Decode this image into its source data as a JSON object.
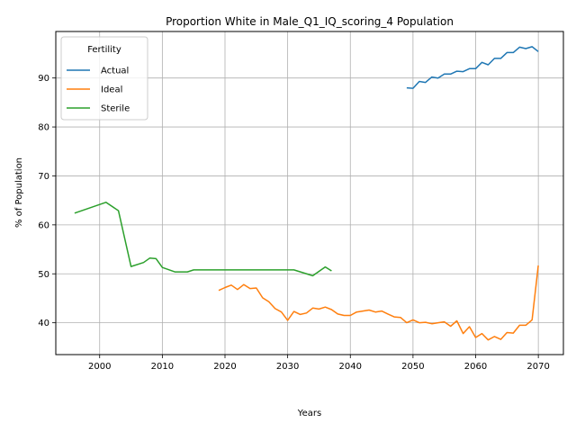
{
  "chart_data": {
    "type": "line",
    "title": "Proportion White in Male_Q1_IQ_scoring_4 Population",
    "xlabel": "Years",
    "ylabel": "% of Population",
    "xlim": [
      1993,
      2074
    ],
    "ylim": [
      33.5,
      99.5
    ],
    "xticks": [
      2000,
      2010,
      2020,
      2030,
      2040,
      2050,
      2060,
      2070
    ],
    "yticks": [
      40,
      50,
      60,
      70,
      80,
      90
    ],
    "grid": true,
    "legend": {
      "title": "Fertility",
      "placement": "top-left"
    },
    "series": [
      {
        "name": "Actual",
        "color": "#1f77b4",
        "x": [
          2049,
          2050,
          2051,
          2052,
          2053,
          2054,
          2055,
          2056,
          2057,
          2058,
          2059,
          2060,
          2061,
          2062,
          2063,
          2064,
          2065,
          2066,
          2067,
          2068,
          2069,
          2070
        ],
        "y": [
          88.0,
          87.9,
          89.3,
          89.1,
          90.2,
          90.0,
          90.8,
          90.8,
          91.4,
          91.3,
          91.9,
          91.9,
          93.2,
          92.7,
          94.0,
          94.0,
          95.2,
          95.2,
          96.3,
          96.0,
          96.4,
          95.4
        ]
      },
      {
        "name": "Ideal",
        "color": "#ff7f0e",
        "x": [
          2019,
          2020,
          2021,
          2022,
          2023,
          2024,
          2025,
          2026,
          2027,
          2028,
          2029,
          2030,
          2031,
          2032,
          2033,
          2034,
          2035,
          2036,
          2037,
          2038,
          2039,
          2040,
          2041,
          2042,
          2043,
          2044,
          2045,
          2046,
          2047,
          2048,
          2049,
          2050,
          2051,
          2052,
          2053,
          2054,
          2055,
          2056,
          2057,
          2058,
          2059,
          2060,
          2061,
          2062,
          2063,
          2064,
          2065,
          2066,
          2067,
          2068,
          2069,
          2070
        ],
        "y": [
          46.6,
          47.2,
          47.7,
          46.8,
          47.8,
          47.0,
          47.1,
          45.1,
          44.3,
          42.9,
          42.2,
          40.5,
          42.3,
          41.7,
          42.0,
          43.0,
          42.8,
          43.2,
          42.7,
          41.8,
          41.5,
          41.5,
          42.2,
          42.4,
          42.6,
          42.2,
          42.4,
          41.8,
          41.2,
          41.1,
          40.0,
          40.6,
          40.0,
          40.1,
          39.8,
          40.0,
          40.2,
          39.3,
          40.4,
          37.8,
          39.2,
          37.0,
          37.8,
          36.5,
          37.2,
          36.6,
          38.0,
          37.9,
          39.5,
          39.5,
          40.6,
          51.7
        ]
      },
      {
        "name": "Sterile",
        "color": "#2ca02c",
        "x": [
          1996,
          2001,
          2003,
          2005,
          2007,
          2008,
          2009,
          2010,
          2012,
          2014,
          2015,
          2020,
          2025,
          2030,
          2031,
          2034,
          2036,
          2037
        ],
        "y": [
          62.4,
          64.6,
          62.9,
          51.5,
          52.3,
          53.2,
          53.1,
          51.3,
          50.4,
          50.4,
          50.8,
          50.8,
          50.8,
          50.8,
          50.8,
          49.6,
          51.4,
          50.6
        ]
      }
    ]
  }
}
